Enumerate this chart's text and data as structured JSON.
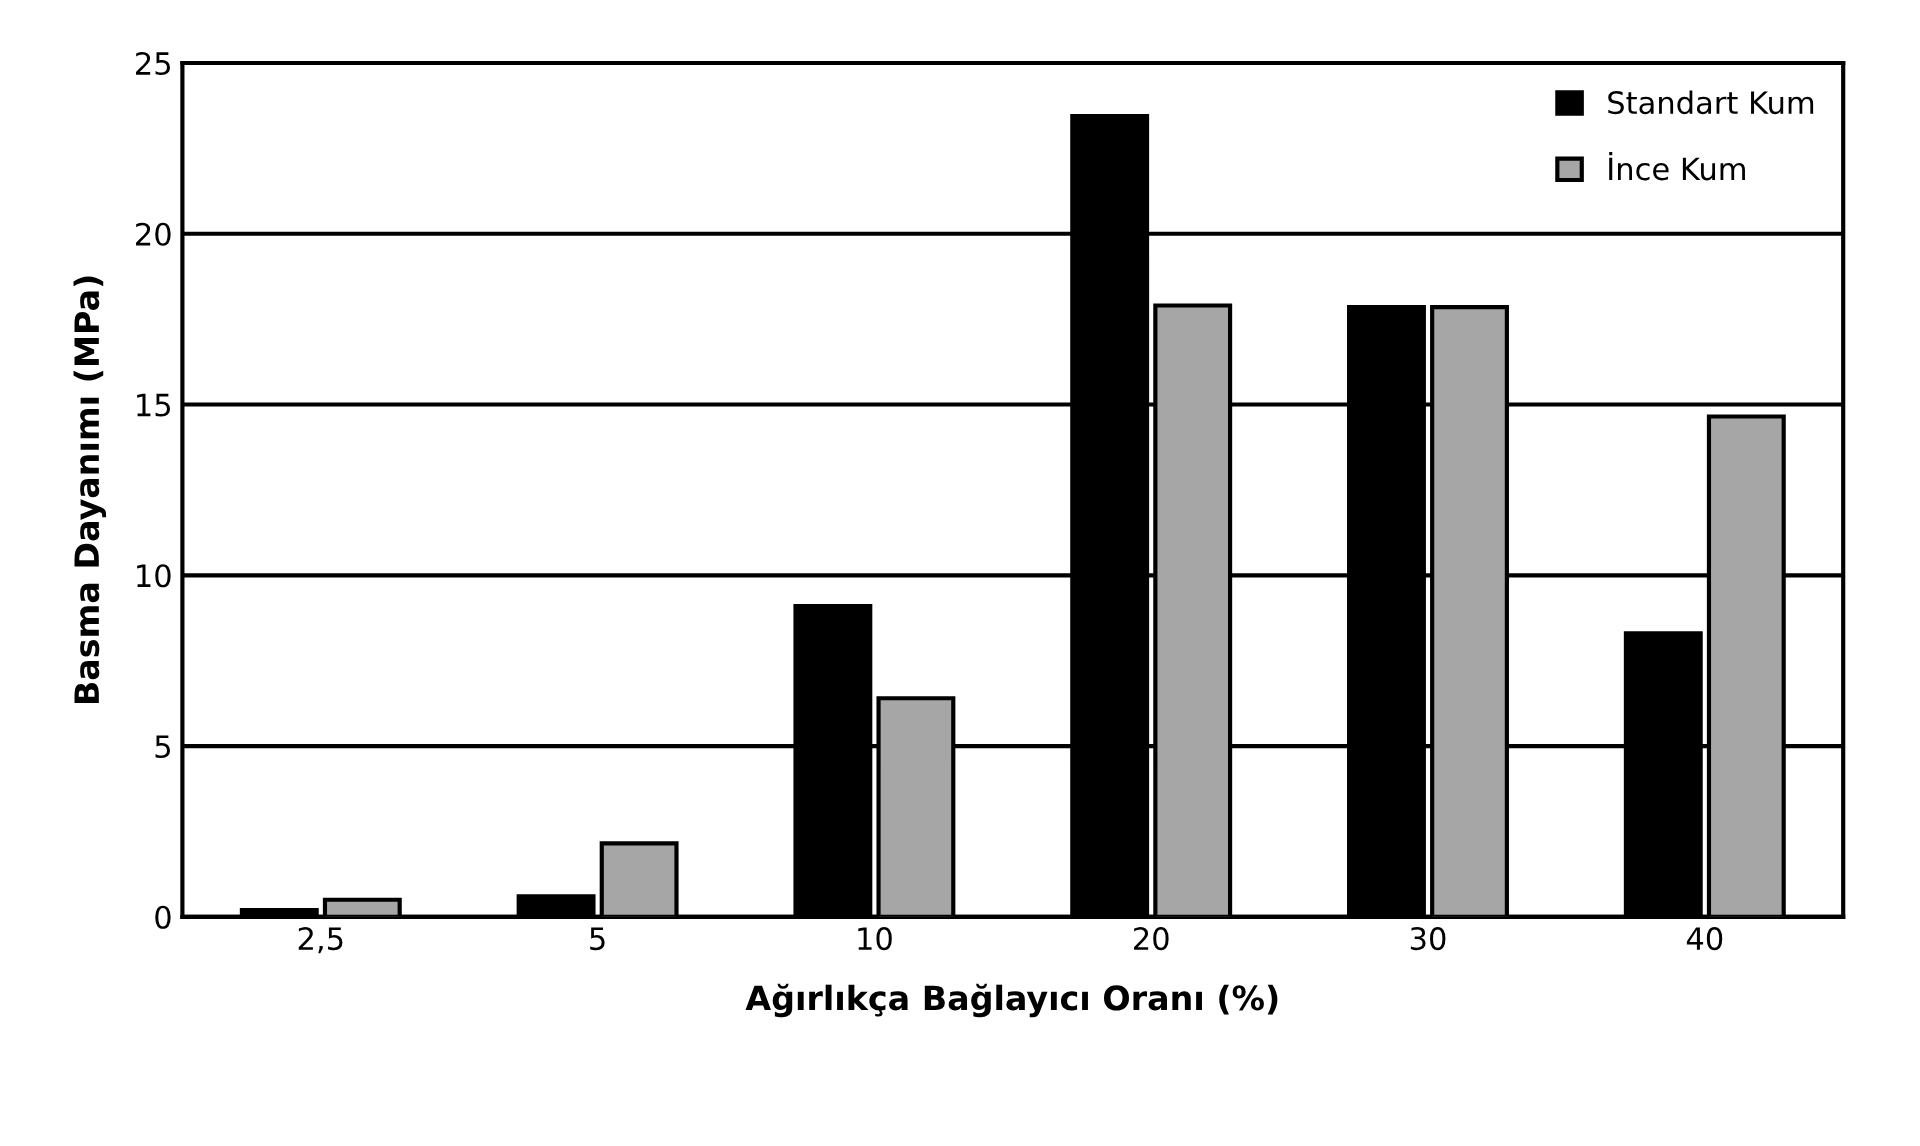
{
  "chart_data": {
    "type": "bar",
    "xlabel": "Ağırlıkça Bağlayıcı Oranı (%)",
    "ylabel": "Basma Dayanımı (MPa)",
    "categories": [
      "2,5",
      "5",
      "10",
      "20",
      "30",
      "40"
    ],
    "series": [
      {
        "name": "Standart Kum",
        "color": "#000000",
        "values": [
          0.2,
          0.6,
          9.1,
          23.45,
          17.85,
          8.3
        ]
      },
      {
        "name": "İnce Kum",
        "color": "#a6a6a6",
        "values": [
          0.5,
          2.15,
          6.4,
          17.9,
          17.85,
          14.65
        ]
      }
    ],
    "ylim": [
      0,
      25
    ],
    "yticks": [
      0,
      5,
      10,
      15,
      20,
      25
    ],
    "grid": "y",
    "legend": "top right"
  }
}
